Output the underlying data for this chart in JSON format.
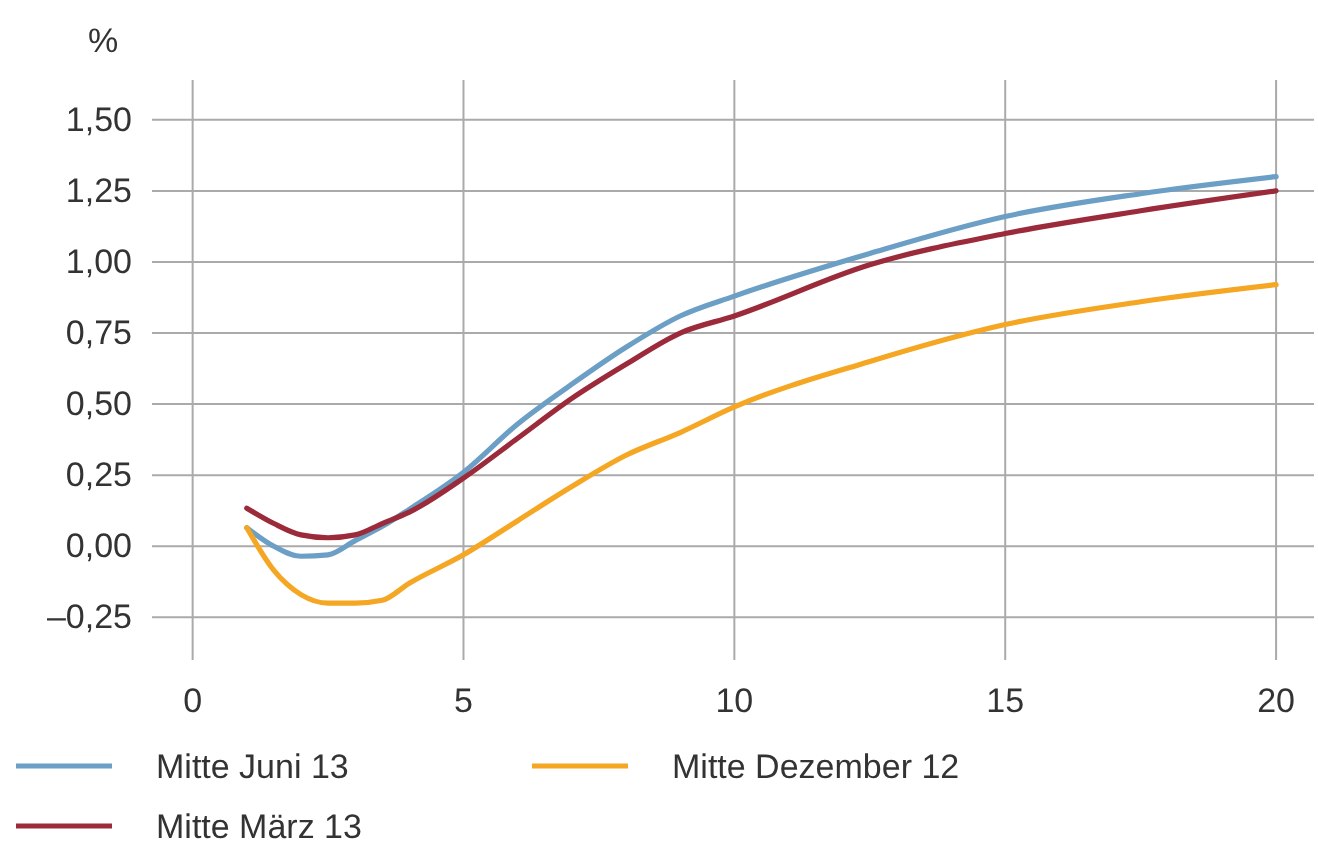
{
  "chart_data": {
    "type": "line",
    "ylabel": "%",
    "x": [
      1,
      1.5,
      2,
      2.5,
      3,
      3.5,
      4,
      5,
      6,
      7,
      8,
      9,
      10,
      12.5,
      15,
      17.5,
      20
    ],
    "series": [
      {
        "name": "Mitte Juni 13",
        "color": "#6c9fc5",
        "values": [
          0.065,
          0,
          -0.035,
          -0.03,
          0.02,
          0.07,
          0.13,
          0.26,
          0.43,
          0.57,
          0.7,
          0.81,
          0.88,
          1.03,
          1.16,
          1.24,
          1.3
        ]
      },
      {
        "name": "Mitte März 13",
        "color": "#9b2a3a",
        "values": [
          0.134,
          0.08,
          0.04,
          0.03,
          0.04,
          0.08,
          0.12,
          0.24,
          0.38,
          0.52,
          0.64,
          0.75,
          0.81,
          0.99,
          1.1,
          1.18,
          1.25
        ]
      },
      {
        "name": "Mitte Dezember 12",
        "color": "#f5a623",
        "values": [
          0.065,
          -0.085,
          -0.17,
          -0.2,
          -0.2,
          -0.19,
          -0.13,
          -0.03,
          0.09,
          0.21,
          0.32,
          0.4,
          0.49,
          0.65,
          0.78,
          0.86,
          0.92
        ]
      }
    ],
    "xlim": [
      -0.75,
      20.7
    ],
    "ylim": [
      -0.4,
      1.64
    ],
    "xticks": [
      0,
      5,
      10,
      15,
      20
    ],
    "yticks": [
      {
        "value": -0.25,
        "label": "–0,25"
      },
      {
        "value": 0,
        "label": "0,00"
      },
      {
        "value": 0.25,
        "label": "0,25"
      },
      {
        "value": 0.5,
        "label": "0,50"
      },
      {
        "value": 0.75,
        "label": "0,75"
      },
      {
        "value": 1,
        "label": "1,00"
      },
      {
        "value": 1.25,
        "label": "1,25"
      },
      {
        "value": 1.5,
        "label": "1,50"
      }
    ],
    "grid": true,
    "legend": "bottom",
    "marker": "none",
    "line_style": "solid"
  }
}
